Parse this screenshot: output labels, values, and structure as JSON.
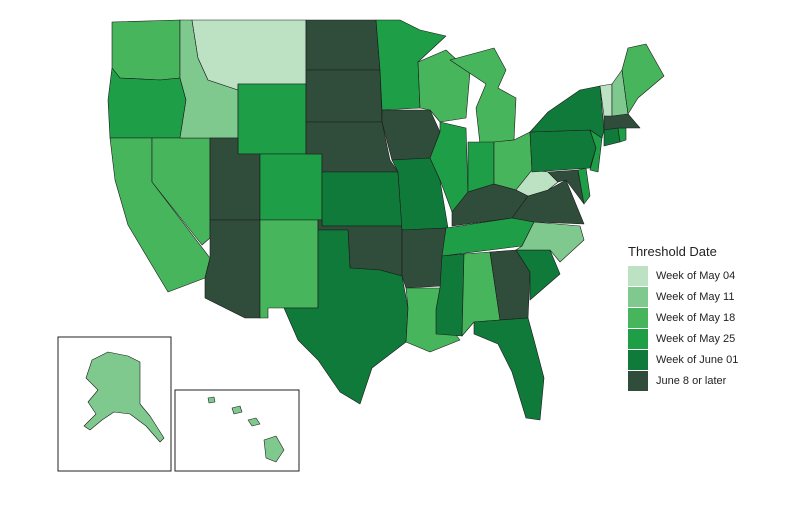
{
  "legend": {
    "title": "Threshold Date",
    "items": [
      {
        "label": "Week of May 04",
        "color": "#bde2c3"
      },
      {
        "label": "Week of May 11",
        "color": "#7fc98f"
      },
      {
        "label": "Week of May 18",
        "color": "#47b55c"
      },
      {
        "label": "Week of May 25",
        "color": "#1e9e47"
      },
      {
        "label": "Week of June 01",
        "color": "#0f7a3a"
      },
      {
        "label": "June 8 or later",
        "color": "#2f4d3a"
      }
    ]
  },
  "state_categories": {
    "WA": 2,
    "OR": 3,
    "CA": 2,
    "NV": 2,
    "ID": 1,
    "MT": 0,
    "WY": 3,
    "UT": 5,
    "AZ": 5,
    "CO": 3,
    "NM": 2,
    "ND": 5,
    "SD": 5,
    "NE": 5,
    "KS": 4,
    "OK": 5,
    "TX": 4,
    "MN": 3,
    "IA": 5,
    "MO": 4,
    "AR": 5,
    "LA": 2,
    "WI": 2,
    "IL": 3,
    "MI": 2,
    "IN": 3,
    "OH": 2,
    "KY": 5,
    "TN": 3,
    "MS": 4,
    "AL": 2,
    "GA": 5,
    "FL": 4,
    "SC": 4,
    "NC": 1,
    "VA": 5,
    "WV": 0,
    "MD": 5,
    "DE": 3,
    "PA": 4,
    "NJ": 3,
    "NY": 4,
    "CT": 4,
    "RI": 3,
    "MA": 5,
    "VT": 0,
    "NH": 1,
    "ME": 2,
    "AK": 1,
    "HI": 1
  }
}
